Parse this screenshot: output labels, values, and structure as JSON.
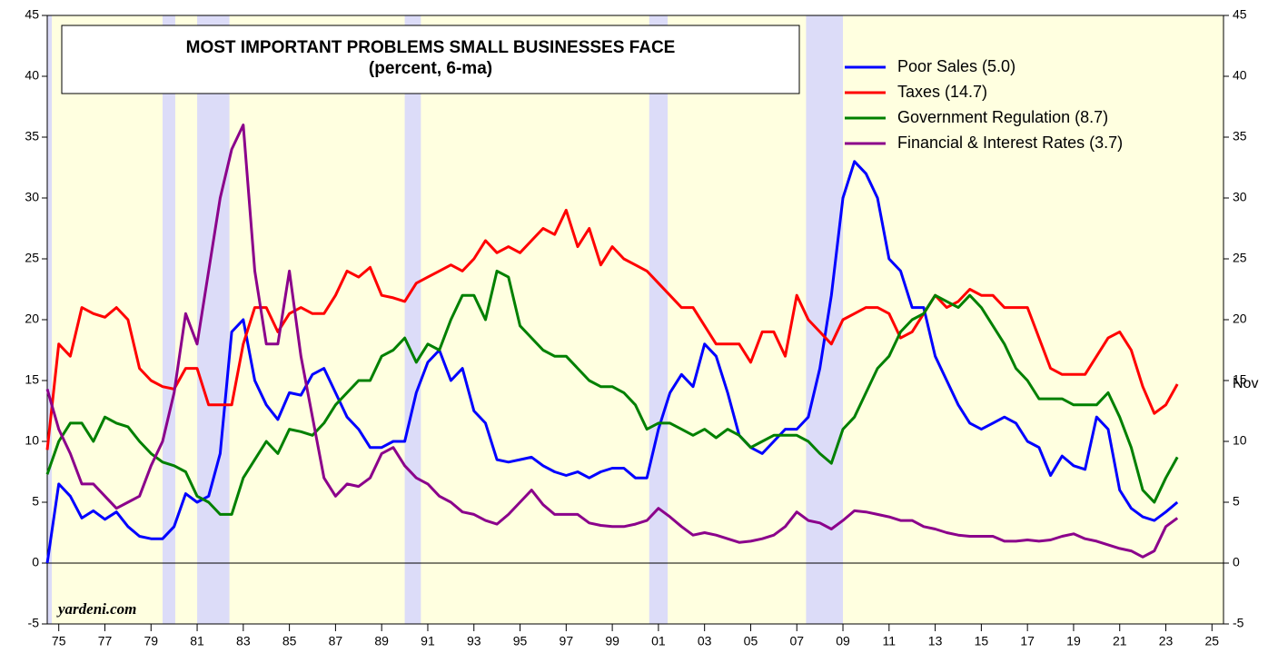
{
  "chart_data": {
    "type": "line",
    "title": [
      "MOST IMPORTANT PROBLEMS SMALL BUSINESSES FACE",
      "(percent, 6-ma)"
    ],
    "annotations": [
      "Nov",
      "yardeni.com"
    ],
    "x": [
      1975,
      1975.5,
      1976,
      1976.5,
      1977,
      1977.5,
      1978,
      1978.5,
      1979,
      1979.5,
      1980,
      1980.5,
      1981,
      1981.5,
      1982,
      1982.5,
      1983,
      1983.5,
      1984,
      1984.5,
      1985,
      1985.5,
      1986,
      1986.5,
      1987,
      1987.5,
      1988,
      1988.5,
      1989,
      1989.5,
      1990,
      1990.5,
      1991,
      1991.5,
      1992,
      1992.5,
      1993,
      1993.5,
      1994,
      1994.5,
      1995,
      1995.5,
      1996,
      1996.5,
      1997,
      1997.5,
      1998,
      1998.5,
      1999,
      1999.5,
      2000,
      2000.5,
      2001,
      2001.5,
      2002,
      2002.5,
      2003,
      2003.5,
      2004,
      2004.5,
      2005,
      2005.5,
      2006,
      2006.5,
      2007,
      2007.5,
      2008,
      2008.5,
      2009,
      2009.5,
      2010,
      2010.5,
      2011,
      2011.5,
      2012,
      2012.5,
      2013,
      2013.5,
      2014,
      2014.5,
      2015,
      2015.5,
      2016,
      2016.5,
      2017,
      2017.5,
      2018,
      2018.5,
      2019,
      2019.5,
      2020,
      2020.5,
      2021,
      2021.5,
      2022,
      2022.5,
      2023,
      2023.5,
      2024
    ],
    "series": [
      {
        "name": "Poor Sales (5.0)",
        "color": "#0000ff",
        "values": [
          0,
          6.5,
          5.5,
          3.7,
          4.3,
          3.6,
          4.2,
          3,
          2.2,
          2,
          2,
          3,
          5.7,
          5,
          5.5,
          9,
          19,
          20,
          15,
          13,
          11.8,
          14,
          13.8,
          15.5,
          16,
          14,
          12,
          11,
          9.5,
          9.5,
          10,
          10,
          14,
          16.5,
          17.5,
          15,
          16,
          12.5,
          11.5,
          8.5,
          8.3,
          8.5,
          8.7,
          8,
          7.5,
          7.2,
          7.5,
          7,
          7.5,
          7.8,
          7.8,
          7,
          7,
          11,
          14,
          15.5,
          14.5,
          18,
          17,
          14,
          10.5,
          9.5,
          9,
          10,
          11,
          11,
          12,
          16,
          22,
          30,
          33,
          32,
          30,
          25,
          24,
          21,
          21,
          17,
          15,
          13,
          11.5,
          11,
          11.5,
          12,
          11.5,
          10,
          9.5,
          7.2,
          8.8,
          8,
          7.7,
          12,
          11,
          6,
          4.5,
          3.8,
          3.5,
          4.2,
          5.0
        ]
      },
      {
        "name": "Taxes (14.7)",
        "color": "#ff0000",
        "values": [
          9.3,
          18,
          17,
          21,
          20.5,
          20.2,
          21,
          20,
          16,
          15,
          14.5,
          14.3,
          16,
          16,
          13,
          13,
          13,
          18,
          21,
          21,
          19,
          20.5,
          21,
          20.5,
          20.5,
          22,
          24,
          23.5,
          24.3,
          22,
          21.8,
          21.5,
          23,
          23.5,
          24,
          24.5,
          24,
          25,
          26.5,
          25.5,
          26,
          25.5,
          26.5,
          27.5,
          27,
          29,
          26,
          27.5,
          24.5,
          26,
          25,
          24.5,
          24,
          23,
          22,
          21,
          21,
          19.5,
          18,
          18,
          18,
          16.5,
          19,
          19,
          17,
          22,
          20,
          19,
          18,
          20,
          20.5,
          21,
          21,
          20.5,
          18.5,
          19,
          20.5,
          22,
          21,
          21.5,
          22.5,
          22,
          22,
          21,
          21,
          21,
          18.5,
          16,
          15.5,
          15.5,
          15.5,
          17,
          18.5,
          19,
          17.5,
          14.5,
          12.3,
          13,
          14.7
        ]
      },
      {
        "name": "Government Regulation (8.7)",
        "color": "#008000",
        "values": [
          7.3,
          10,
          11.5,
          11.5,
          10,
          12,
          11.5,
          11.2,
          10,
          9,
          8.3,
          8,
          7.5,
          5.5,
          5,
          4,
          4,
          7,
          8.5,
          10,
          9,
          11,
          10.8,
          10.5,
          11.5,
          13,
          14,
          15,
          15,
          17,
          17.5,
          18.5,
          16.5,
          18,
          17.5,
          20,
          22,
          22,
          20,
          24,
          23.5,
          19.5,
          18.5,
          17.5,
          17,
          17,
          16,
          15,
          14.5,
          14.5,
          14,
          13,
          11,
          11.5,
          11.5,
          11,
          10.5,
          11,
          10.3,
          11,
          10.5,
          9.5,
          10,
          10.5,
          10.5,
          10.5,
          10,
          9,
          8.2,
          11,
          12,
          14,
          16,
          17,
          19,
          20,
          20.5,
          22,
          21.5,
          21,
          22,
          21,
          19.5,
          18,
          16,
          15,
          13.5,
          13.5,
          13.5,
          13,
          13,
          13,
          14,
          12,
          9.5,
          6,
          5,
          7,
          8.7
        ]
      },
      {
        "name": "Financial & Interest Rates (3.7)",
        "color": "#8b008b",
        "values": [
          14.3,
          11,
          9,
          6.5,
          6.5,
          5.5,
          4.5,
          5,
          5.5,
          8,
          10,
          14,
          20.5,
          18,
          24,
          30,
          34,
          36,
          24,
          18,
          18,
          24,
          17,
          12,
          7,
          5.5,
          6.5,
          6.3,
          7,
          9,
          9.5,
          8,
          7,
          6.5,
          5.5,
          5,
          4.2,
          4,
          3.5,
          3.2,
          4,
          5,
          6,
          4.8,
          4,
          4,
          4,
          3.3,
          3.1,
          3,
          3,
          3.2,
          3.5,
          4.5,
          3.8,
          3,
          2.3,
          2.5,
          2.3,
          2,
          1.7,
          1.8,
          2,
          2.3,
          3,
          4.2,
          3.5,
          3.3,
          2.8,
          3.5,
          4.3,
          4.2,
          4,
          3.8,
          3.5,
          3.5,
          3,
          2.8,
          2.5,
          2.3,
          2.2,
          2.2,
          2.2,
          1.8,
          1.8,
          1.9,
          1.8,
          1.9,
          2.2,
          2.4,
          2,
          1.8,
          1.5,
          1.2,
          1,
          0.5,
          1,
          3,
          3.7
        ]
      }
    ],
    "recessions": [
      [
        1975,
        1975.2
      ],
      [
        1980,
        1980.55
      ],
      [
        1981.5,
        1982.9
      ],
      [
        1990.5,
        1991.2
      ],
      [
        2001.1,
        2001.9
      ],
      [
        2007.9,
        2009.5
      ]
    ],
    "xlim": [
      1975,
      2026
    ],
    "xticks": [
      {
        "value": 1975.5,
        "label": "75"
      },
      {
        "value": 1977.5,
        "label": "77"
      },
      {
        "value": 1979.5,
        "label": "79"
      },
      {
        "value": 1981.5,
        "label": "81"
      },
      {
        "value": 1983.5,
        "label": "83"
      },
      {
        "value": 1985.5,
        "label": "85"
      },
      {
        "value": 1987.5,
        "label": "87"
      },
      {
        "value": 1989.5,
        "label": "89"
      },
      {
        "value": 1991.5,
        "label": "91"
      },
      {
        "value": 1993.5,
        "label": "93"
      },
      {
        "value": 1995.5,
        "label": "95"
      },
      {
        "value": 1997.5,
        "label": "97"
      },
      {
        "value": 1999.5,
        "label": "99"
      },
      {
        "value": 2001.5,
        "label": "01"
      },
      {
        "value": 2003.5,
        "label": "03"
      },
      {
        "value": 2005.5,
        "label": "05"
      },
      {
        "value": 2007.5,
        "label": "07"
      },
      {
        "value": 2009.5,
        "label": "09"
      },
      {
        "value": 2011.5,
        "label": "11"
      },
      {
        "value": 2013.5,
        "label": "13"
      },
      {
        "value": 2015.5,
        "label": "15"
      },
      {
        "value": 2017.5,
        "label": "17"
      },
      {
        "value": 2019.5,
        "label": "19"
      },
      {
        "value": 2021.5,
        "label": "21"
      },
      {
        "value": 2023.5,
        "label": "23"
      },
      {
        "value": 2025.5,
        "label": "25"
      }
    ],
    "ylim": [
      -5,
      45
    ],
    "yticks": [
      -5,
      0,
      5,
      10,
      15,
      20,
      25,
      30,
      35,
      40,
      45
    ],
    "y2lim": [
      -5,
      45
    ],
    "y2ticks": [
      -5,
      0,
      5,
      10,
      15,
      20,
      25,
      30,
      35,
      40,
      45
    ],
    "background": "#ffffe0",
    "recession_color": "#dcdcf8"
  }
}
